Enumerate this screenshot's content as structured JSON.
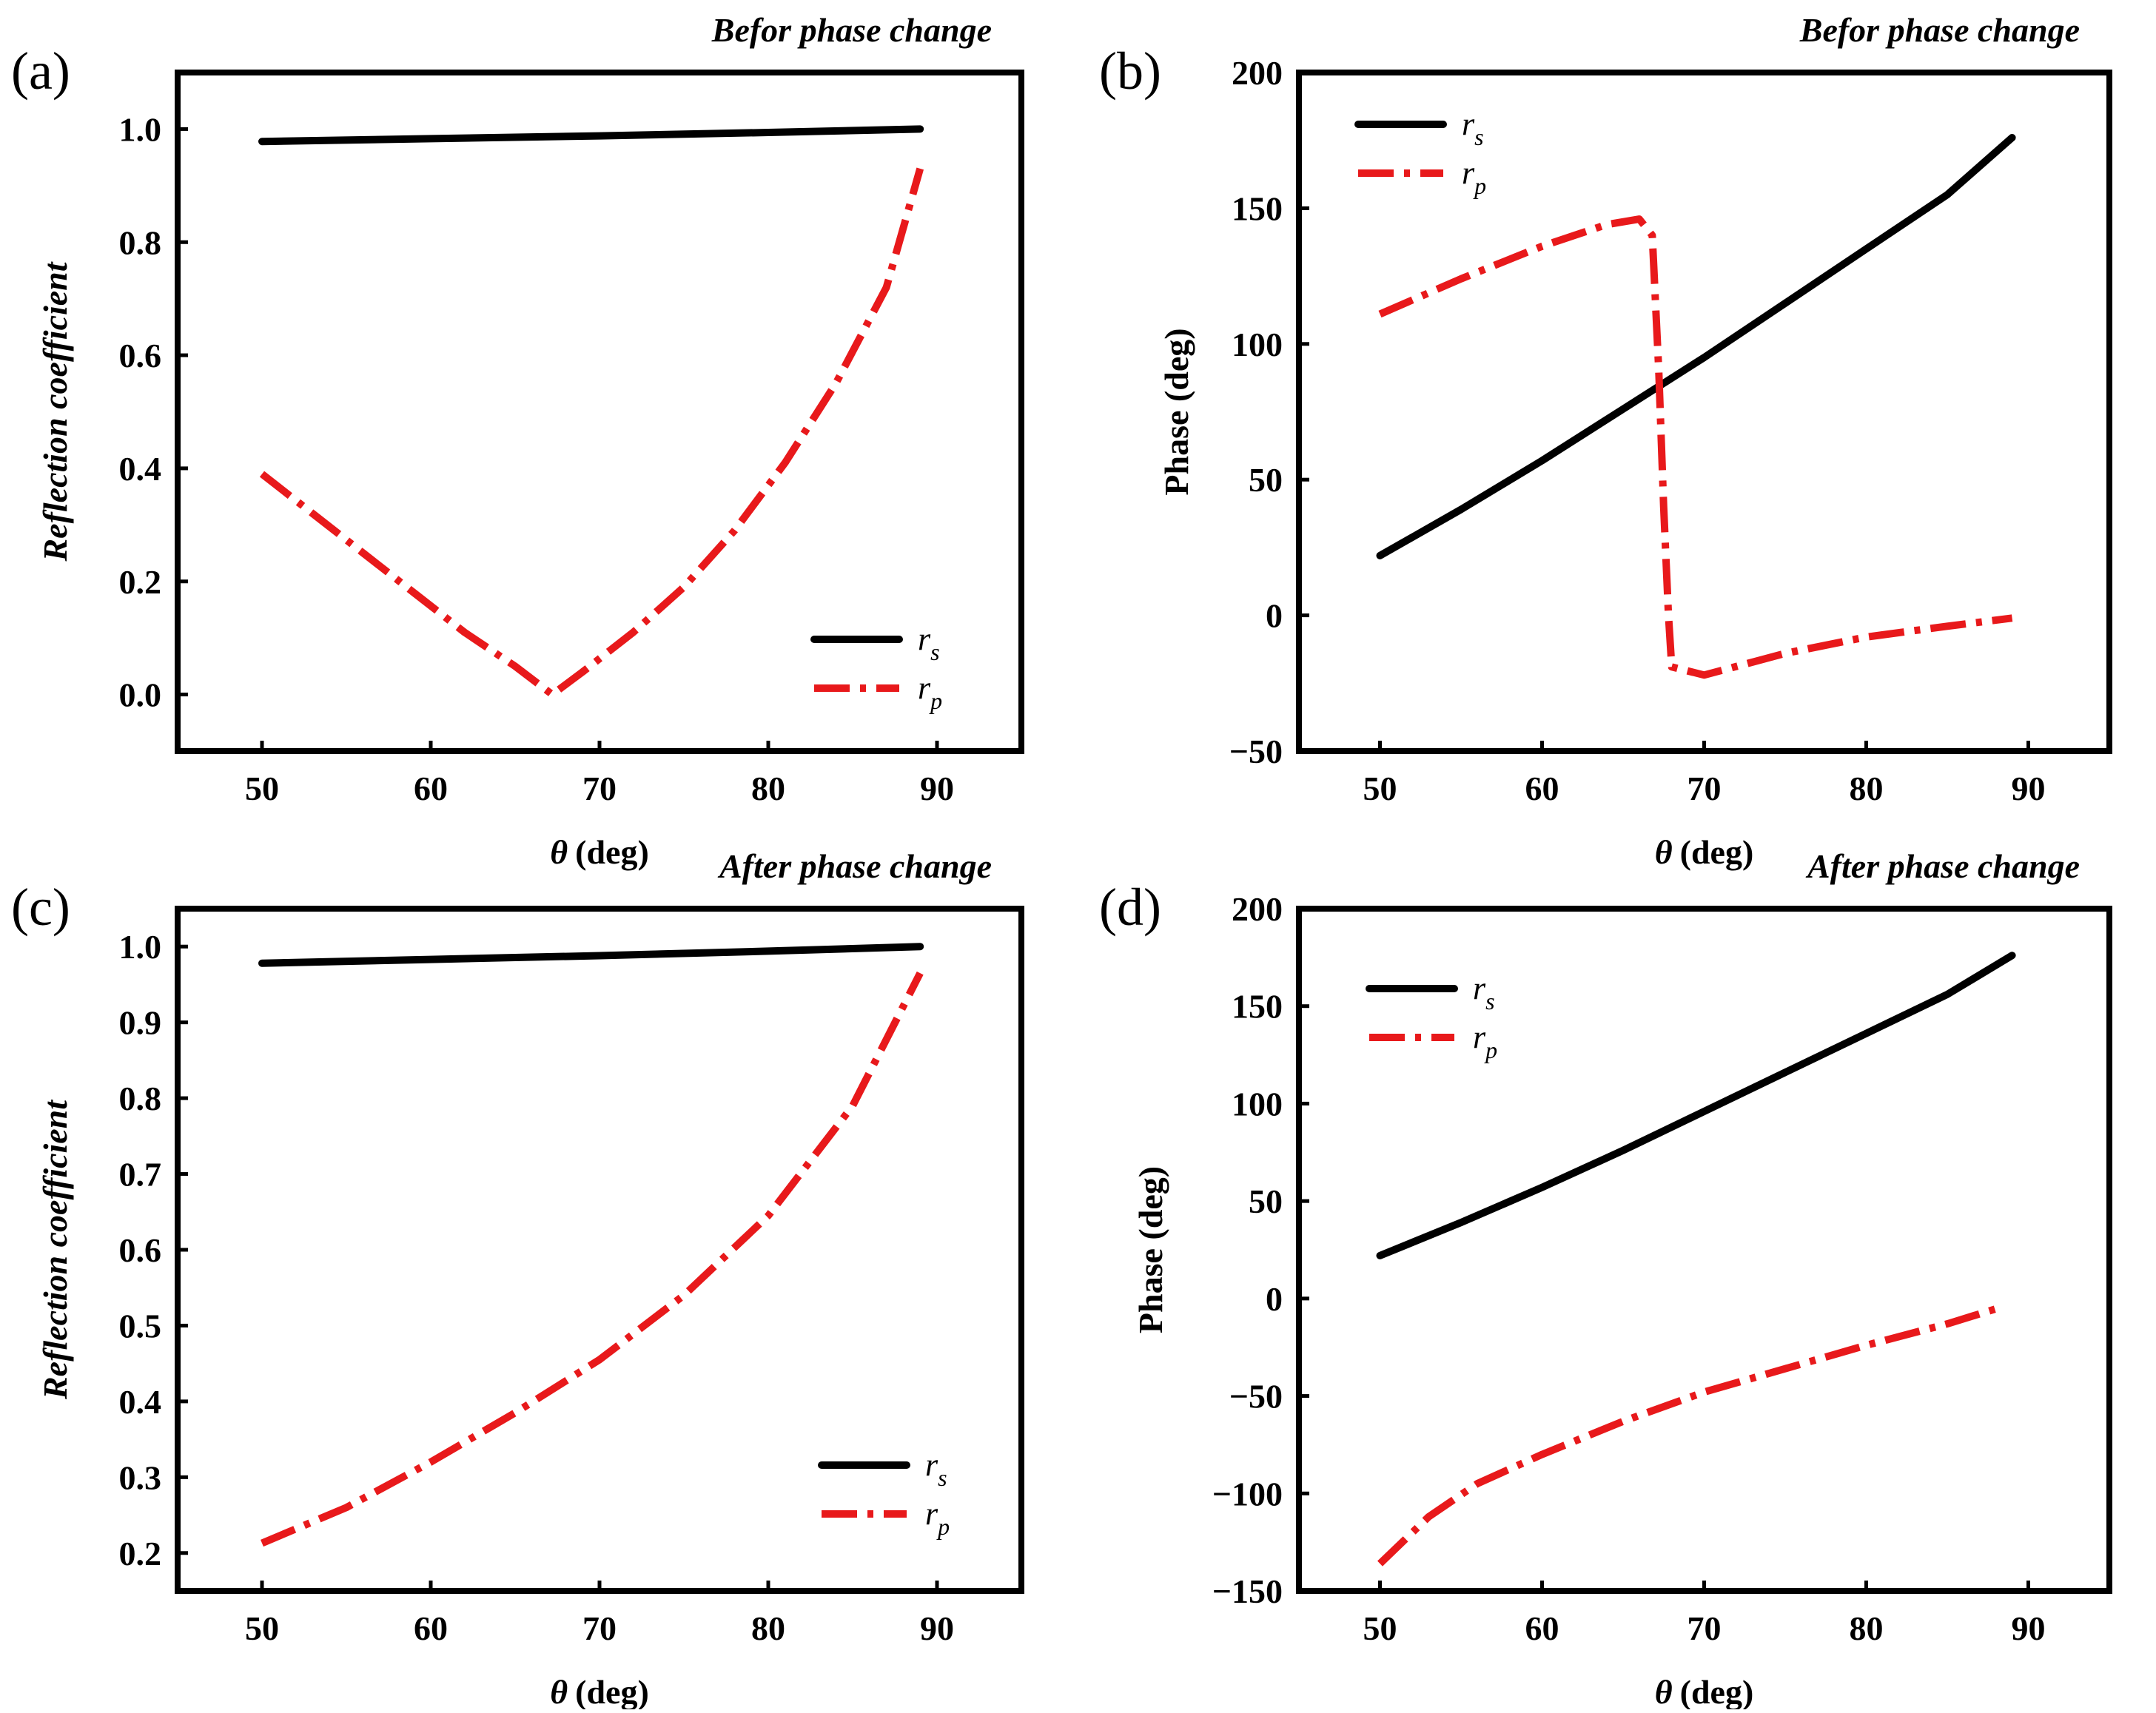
{
  "chart_data": [
    {
      "id": "a",
      "type": "line",
      "panel_label": "(a)",
      "corner_title": "Befor phase change",
      "xlabel": "(deg)",
      "xlabel_symbol": "θ",
      "ylabel": "Reflection coefficient",
      "xlim": [
        45,
        95
      ],
      "ylim": [
        -0.1,
        1.1
      ],
      "xticks": [
        50,
        60,
        70,
        80,
        90
      ],
      "yticks": [
        0.0,
        0.2,
        0.4,
        0.6,
        0.8,
        1.0
      ],
      "ytick_labels": [
        "0.0",
        "0.2",
        "0.4",
        "0.6",
        "0.8",
        "1.0"
      ],
      "legend_position": "bottom-right",
      "series": [
        {
          "name": "r",
          "subscript": "s",
          "color": "#000000",
          "style": "solid",
          "x": [
            50,
            60,
            70,
            80,
            89
          ],
          "y": [
            0.978,
            0.983,
            0.988,
            0.994,
            1.0
          ]
        },
        {
          "name": "r",
          "subscript": "p",
          "color": "#e8191b",
          "style": "dash-dot",
          "x": [
            50,
            53,
            56,
            59,
            62,
            65,
            67.2,
            69,
            72,
            75,
            78,
            81,
            84,
            87,
            89
          ],
          "y": [
            0.39,
            0.32,
            0.25,
            0.18,
            0.11,
            0.05,
            0.0,
            0.04,
            0.11,
            0.19,
            0.29,
            0.41,
            0.55,
            0.72,
            0.93
          ]
        }
      ]
    },
    {
      "id": "b",
      "type": "line",
      "panel_label": "(b)",
      "corner_title": "Befor phase change",
      "xlabel": "(deg)",
      "xlabel_symbol": "θ",
      "ylabel": "Phase (deg)",
      "xlim": [
        45,
        95
      ],
      "ylim": [
        -50,
        200
      ],
      "xticks": [
        50,
        60,
        70,
        80,
        90
      ],
      "yticks": [
        -50,
        0,
        50,
        100,
        150,
        200
      ],
      "ytick_labels": [
        "−50",
        "0",
        "50",
        "100",
        "150",
        "200"
      ],
      "legend_position": "top-left",
      "series": [
        {
          "name": "r",
          "subscript": "s",
          "color": "#000000",
          "style": "solid",
          "x": [
            50,
            55,
            60,
            65,
            70,
            75,
            80,
            85,
            89
          ],
          "y": [
            22,
            39,
            57,
            76,
            95,
            115,
            135,
            155,
            176
          ]
        },
        {
          "name": "r",
          "subscript": "p",
          "color": "#e8191b",
          "style": "dash-dot",
          "x": [
            50,
            55,
            60,
            64,
            66,
            66.8,
            67.2,
            67.5,
            67.8,
            68,
            70,
            75,
            80,
            85,
            89
          ],
          "y": [
            111,
            124,
            136,
            144,
            146,
            140,
            90,
            40,
            0,
            -19,
            -22,
            -14,
            -8,
            -4,
            -1
          ]
        }
      ]
    },
    {
      "id": "c",
      "type": "line",
      "panel_label": "(c)",
      "corner_title": "After phase change",
      "xlabel": "(deg)",
      "xlabel_symbol": "θ",
      "ylabel": "Reflection coefficient",
      "xlim": [
        45,
        95
      ],
      "ylim": [
        0.15,
        1.05
      ],
      "xticks": [
        50,
        60,
        70,
        80,
        90
      ],
      "yticks": [
        0.2,
        0.3,
        0.4,
        0.5,
        0.6,
        0.7,
        0.8,
        0.9,
        1.0
      ],
      "ytick_labels": [
        "0.2",
        "0.3",
        "0.4",
        "0.5",
        "0.6",
        "0.7",
        "0.8",
        "0.9",
        "1.0"
      ],
      "legend_position": "bottom-right",
      "series": [
        {
          "name": "r",
          "subscript": "s",
          "color": "#000000",
          "style": "solid",
          "x": [
            50,
            60,
            70,
            80,
            89
          ],
          "y": [
            0.978,
            0.983,
            0.988,
            0.994,
            1.0
          ]
        },
        {
          "name": "r",
          "subscript": "p",
          "color": "#e8191b",
          "style": "dash-dot",
          "x": [
            50,
            55,
            60,
            65,
            70,
            75,
            80,
            85,
            89
          ],
          "y": [
            0.213,
            0.26,
            0.32,
            0.385,
            0.455,
            0.54,
            0.645,
            0.79,
            0.965
          ]
        }
      ]
    },
    {
      "id": "d",
      "type": "line",
      "panel_label": "(d)",
      "corner_title": "After phase change",
      "xlabel": "(deg)",
      "xlabel_symbol": "θ",
      "ylabel": "Phase (deg)",
      "xlim": [
        45,
        95
      ],
      "ylim": [
        -150,
        200
      ],
      "xticks": [
        50,
        60,
        70,
        80,
        90
      ],
      "yticks": [
        -150,
        -100,
        -50,
        0,
        50,
        100,
        150,
        200
      ],
      "ytick_labels": [
        "−150",
        "−100",
        "−50",
        "0",
        "50",
        "100",
        "150",
        "200"
      ],
      "legend_position": "top-left",
      "series": [
        {
          "name": "r",
          "subscript": "s",
          "color": "#000000",
          "style": "solid",
          "x": [
            50,
            55,
            60,
            65,
            70,
            75,
            80,
            85,
            89
          ],
          "y": [
            22,
            39,
            57,
            76,
            96,
            116,
            136,
            156,
            176
          ]
        },
        {
          "name": "r",
          "subscript": "p",
          "color": "#e8191b",
          "style": "dash-dot",
          "x": [
            50,
            53,
            56,
            60,
            65,
            70,
            75,
            80,
            85,
            88.5
          ],
          "y": [
            -136,
            -112,
            -95,
            -80,
            -63,
            -48,
            -36,
            -24,
            -13,
            -4
          ]
        }
      ]
    }
  ]
}
